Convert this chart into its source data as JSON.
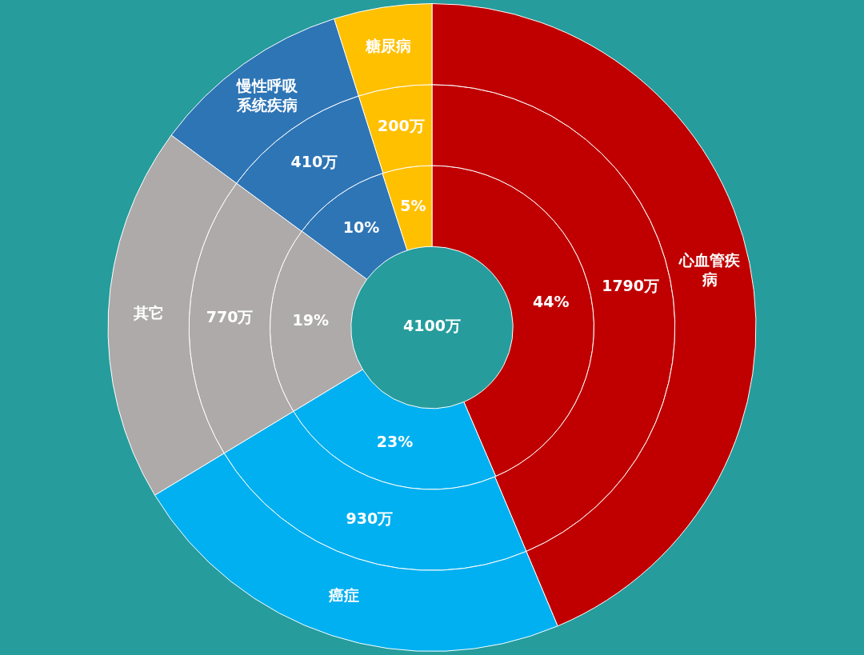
{
  "chart_data": {
    "type": "donut",
    "categories": [
      "心血管疾病",
      "癌症",
      "其它",
      "慢性呼吸系统疾病",
      "糖尿病"
    ],
    "colors": [
      "#c00000",
      "#00b0f0",
      "#aeaaaa",
      "#2e75b6",
      "#ffc000"
    ],
    "series": [
      {
        "values": [
          43.66,
          22.68,
          18.78,
          10.0,
          4.88
        ]
      },
      {
        "values": [
          1790,
          930,
          770,
          410,
          200
        ],
        "value_labels": [
          "1790万",
          "930万",
          "770万",
          "410万",
          "200万"
        ]
      },
      {
        "values": [
          44,
          23,
          19,
          10,
          5
        ],
        "value_labels": [
          "44%",
          "23%",
          "19%",
          "10%",
          "5%"
        ]
      }
    ],
    "annotations": [
      "4100万"
    ],
    "legend": false
  }
}
